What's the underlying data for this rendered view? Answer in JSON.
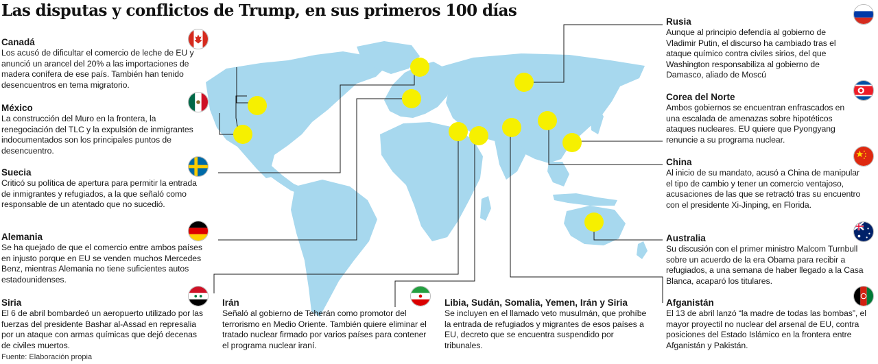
{
  "title": "Las disputas y conflictos de Trump, en sus primeros 100 días",
  "source": "Fuente: Elaboración propia",
  "colors": {
    "land": "#a7d8ee",
    "land_shade": "#8ccbe6",
    "marker": "#f6f000",
    "line": "#1a1a1a"
  },
  "items": [
    {
      "key": "canada",
      "heading": "Canadá",
      "flag": "canada-flag-icon",
      "text": "Los acusó de dificultar el comercio de leche de EU y anunció un arancel del 20% a las importaciones de madera conífera de ese país. También han tenido desencuentros en tema migratorio."
    },
    {
      "key": "mexico",
      "heading": "México",
      "flag": "mexico-flag-icon",
      "text": "La construcción del Muro en la frontera, la renegociación del TLC y la expulsión de inmigrantes indocumentados son los principales puntos de desencuentro."
    },
    {
      "key": "suecia",
      "heading": "Suecia",
      "flag": "sweden-flag-icon",
      "text": "Criticó su política de apertura para permitir la entrada de inmigrantes y refugiados, a la que señaló como responsable de un atentado que no sucedió."
    },
    {
      "key": "alemania",
      "heading": "Alemania",
      "flag": "germany-flag-icon",
      "text": "Se ha quejado de que el comercio entre ambos países en injusto porque en EU se venden muchos Mercedes Benz, mientras Alemania no tiene suficientes autos estadounidenses."
    },
    {
      "key": "siria",
      "heading": "Siria",
      "flag": "syria-flag-icon",
      "text": "El 6 de abril bombardeó un aeropuerto utilizado por las fuerzas del presidente Bashar al-Assad en represalia por un ataque con armas químicas que dejó decenas de civiles muertos."
    },
    {
      "key": "iran",
      "heading": "Irán",
      "flag": "iran-flag-icon",
      "text": "Señaló al gobierno de Teherán como promotor del terrorismo en Medio Oriente. También quiere eliminar el tratado nuclear firmado por varios países para contener el programa nuclear iraní."
    },
    {
      "key": "veto",
      "heading": "Libia, Sudán, Somalia, Yemen, Irán y  Siria",
      "flag": "",
      "text": "Se incluyen en el llamado veto musulmán, que prohíbe la entrada de refugiados y migrantes de esos países a EU, decreto que se encuentra suspendido por tribunales."
    },
    {
      "key": "afganistan",
      "heading": "Afganistán",
      "flag": "afghanistan-flag-icon",
      "text": "El 13 de abril lanzó “la madre de todas las bombas”, el mayor proyectil no nuclear del arsenal de EU, contra posiciones del Estado Islámico en la frontera entre Afganistán y Pakistán."
    },
    {
      "key": "australia",
      "heading": "Australia",
      "flag": "australia-flag-icon",
      "text": "Su discusión con el primer ministro Malcom Turnbull sobre un acuerdo de la era Obama para recibir a refugiados, a una semana de haber llegado a la Casa Blanca, acaparó los titulares."
    },
    {
      "key": "china",
      "heading": "China",
      "flag": "china-flag-icon",
      "text": "Al inicio de su mandato, acusó a China de manipular el tipo de cambio y tener un comercio ventajoso, acusaciones de las que se retractó tras su encuentro con el presidente Xi-Jinping, en Florida."
    },
    {
      "key": "corea",
      "heading": "Corea del Norte",
      "flag": "north-korea-flag-icon",
      "text": "Ambos gobiernos se encuentran enfrascados en una escalada de amenazas sobre hipotéticos ataques nucleares. EU quiere que Pyongyang renuncie a su programa nuclear."
    },
    {
      "key": "rusia",
      "heading": "Rusia",
      "flag": "russia-flag-icon",
      "text": "Aunque al principio defendía al gobierno de Vladimir Putin, el discurso ha cambiado tras el ataque químico contra civiles sirios, del que Washington responsabiliza al gobierno de Damasco, aliado de Moscú"
    }
  ]
}
